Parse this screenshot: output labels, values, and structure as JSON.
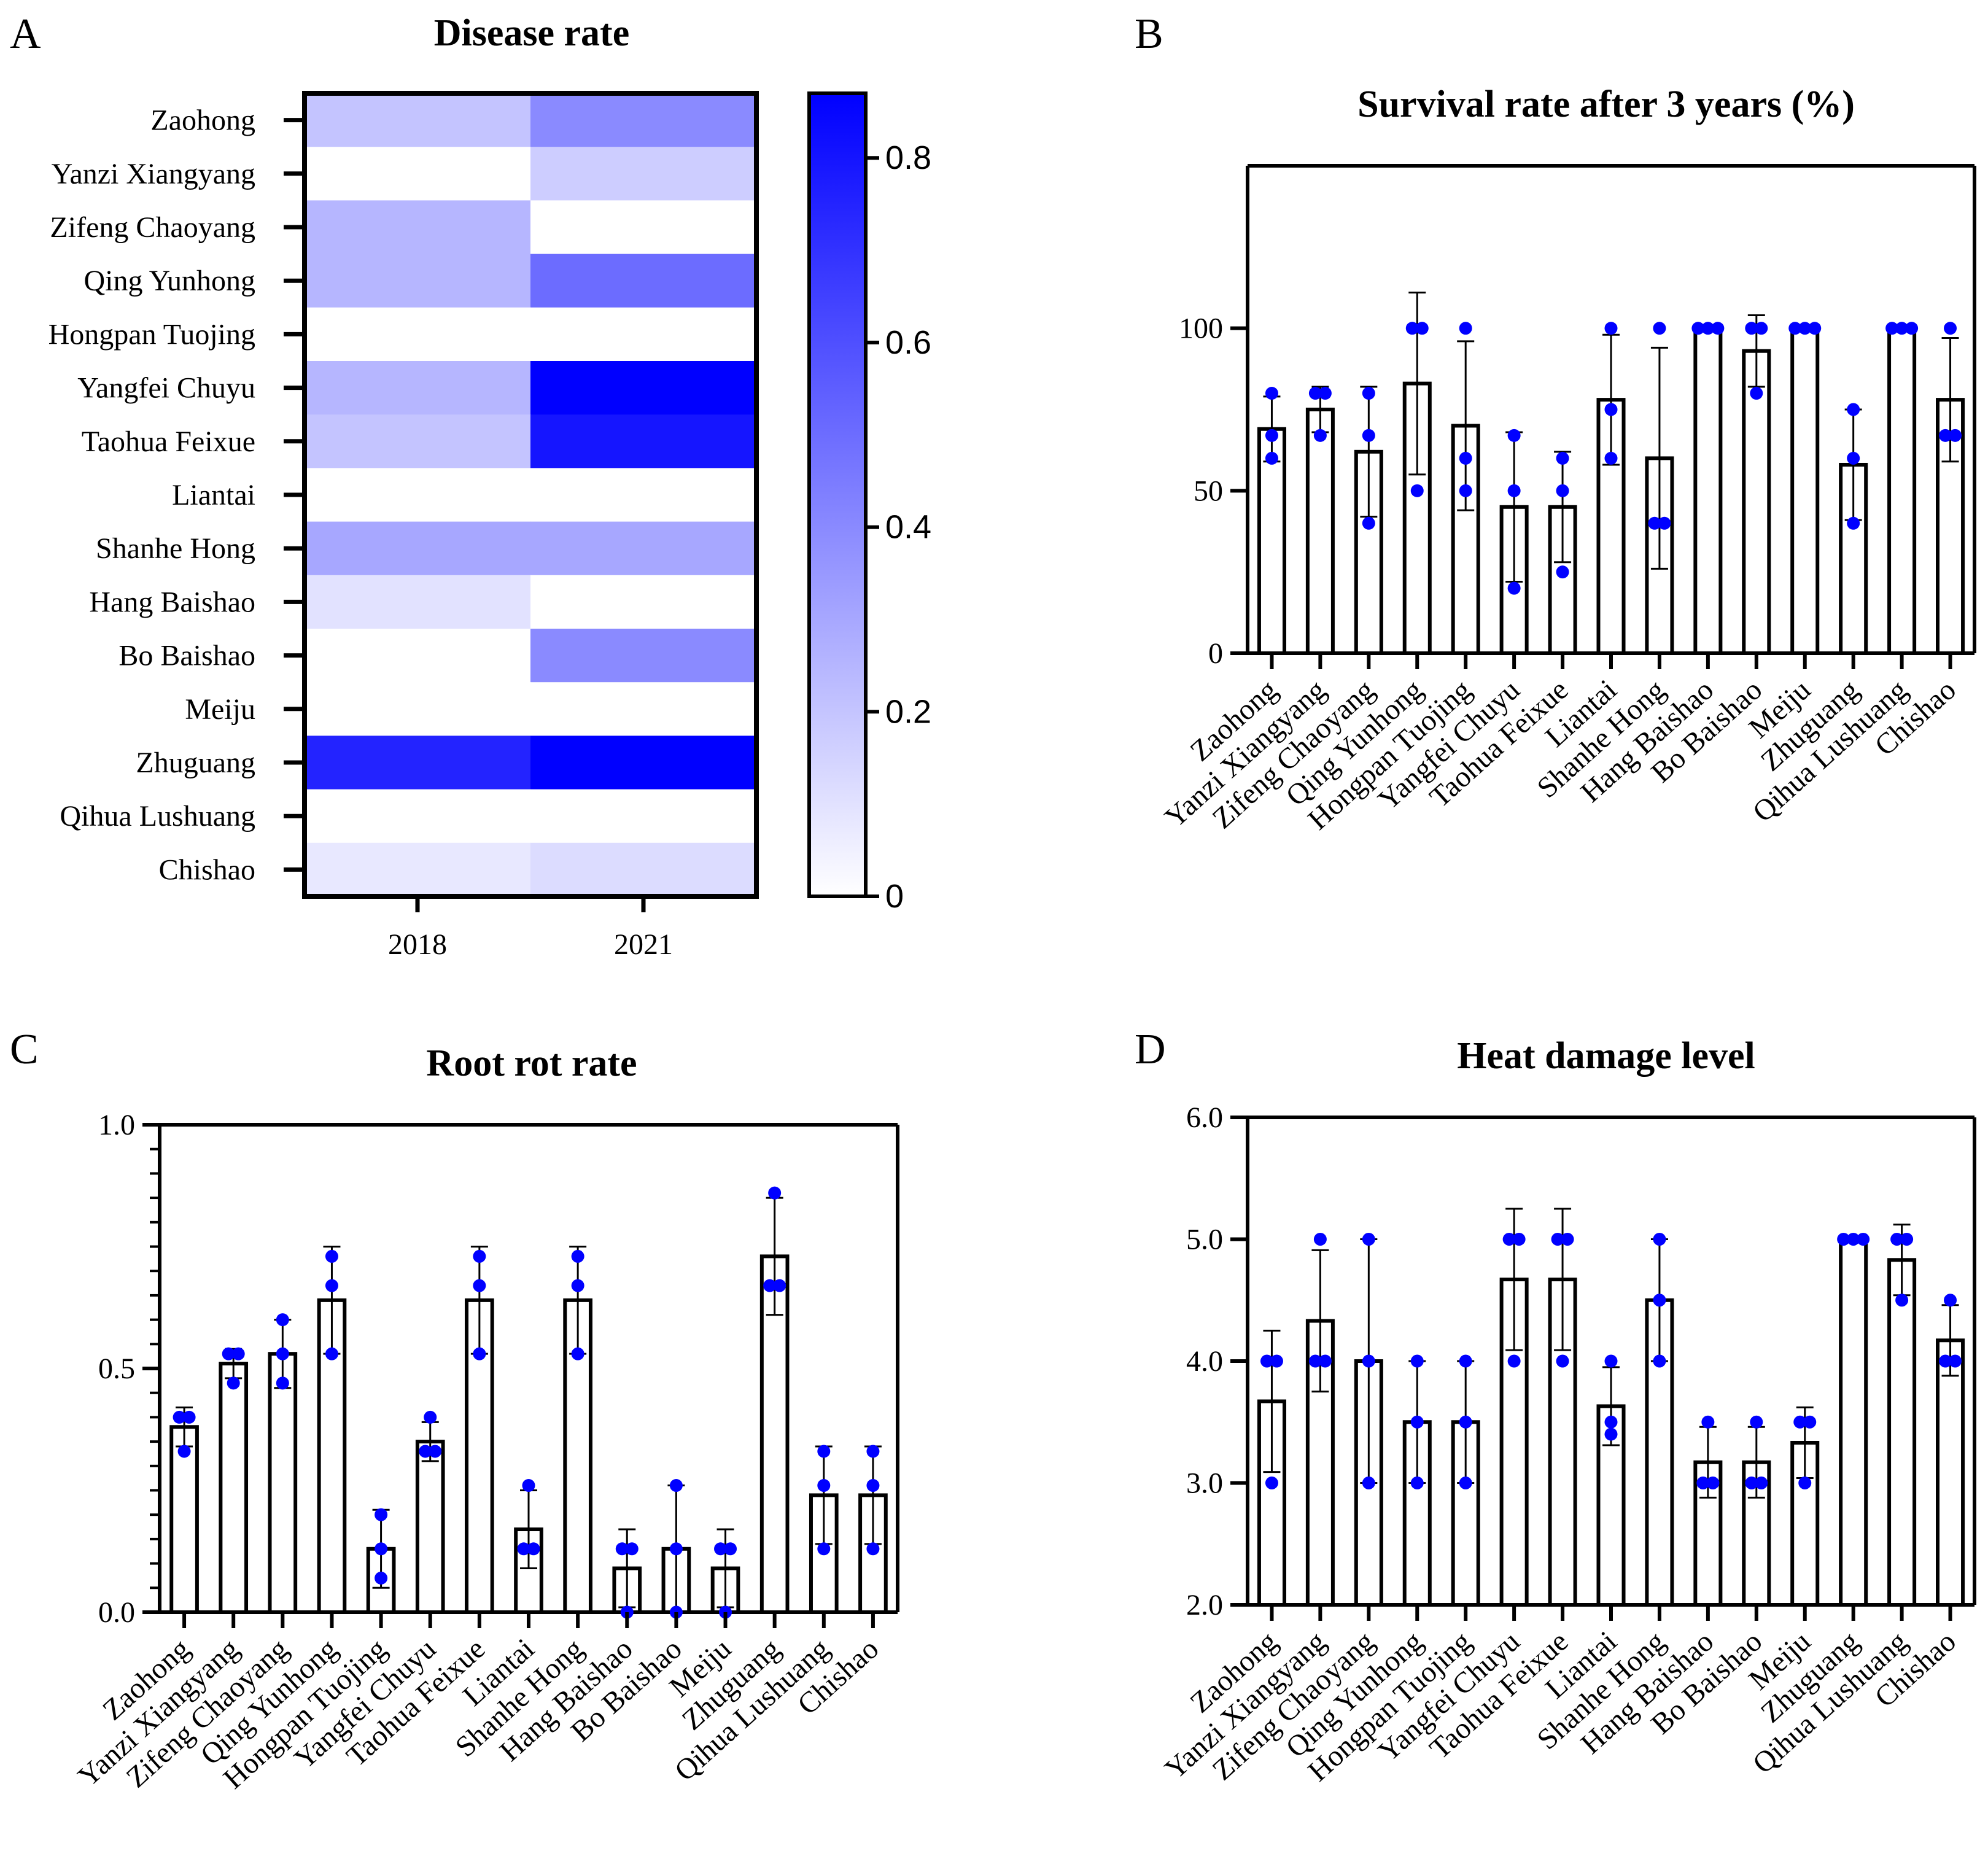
{
  "colors": {
    "bar_fill": "#ffffff",
    "bar_stroke": "#000000",
    "point": "#0000ff",
    "heat_max": "#0000ff",
    "heat_min": "#ffffff"
  },
  "chart_data": [
    {
      "panel": "A",
      "type": "heatmap",
      "title": "Disease rate",
      "rows": [
        "Zaohong",
        "Yanzi Xiangyang",
        "Zifeng Chaoyang",
        "Qing Yunhong",
        "Hongpan Tuojing",
        "Yangfei Chuyu",
        "Taohua Feixue",
        "Liantai",
        "Shanhe Hong",
        "Hang Baishao",
        "Bo Baishao",
        "Meiju",
        "Zhuguang",
        "Qihua Lushuang",
        "Chishao"
      ],
      "columns": [
        "2018",
        "2021"
      ],
      "values": [
        [
          0.2,
          0.4
        ],
        [
          0.0,
          0.17
        ],
        [
          0.25,
          0.0
        ],
        [
          0.25,
          0.5
        ],
        [
          0.0,
          0.0
        ],
        [
          0.25,
          0.87
        ],
        [
          0.2,
          0.8
        ],
        [
          0.0,
          0.0
        ],
        [
          0.3,
          0.3
        ],
        [
          0.1,
          0.0
        ],
        [
          0.0,
          0.4
        ],
        [
          0.0,
          0.0
        ],
        [
          0.75,
          0.87
        ],
        [
          0.0,
          0.0
        ],
        [
          0.08,
          0.12
        ]
      ],
      "colorbar": {
        "range": [
          0,
          0.87
        ],
        "ticks": [
          0,
          0.2,
          0.4,
          0.6,
          0.8
        ],
        "tick_labels": [
          "0",
          "0.2",
          "0.4",
          "0.6",
          "0.8"
        ]
      }
    },
    {
      "panel": "B",
      "type": "bar",
      "title": "Survival rate after 3 years (%)",
      "categories": [
        "Zaohong",
        "Yanzi Xiangyang",
        "Zifeng Chaoyang",
        "Qing Yunhong",
        "Hongpan Tuojing",
        "Yangfei Chuyu",
        "Taohua Feixue",
        "Liantai",
        "Shanhe Hong",
        "Hang Baishao",
        "Bo Baishao",
        "Meiju",
        "Zhuguang",
        "Qihua Lushuang",
        "Chishao"
      ],
      "values": [
        69,
        75,
        62,
        83,
        70,
        45,
        45,
        78,
        60,
        100,
        93,
        100,
        58,
        100,
        78
      ],
      "errors": [
        10,
        7,
        20,
        28,
        26,
        23,
        17,
        20,
        34,
        0,
        11,
        0,
        17,
        0,
        19
      ],
      "points": [
        [
          80,
          67,
          60
        ],
        [
          80,
          80,
          67
        ],
        [
          80,
          67,
          40
        ],
        [
          100,
          100,
          50
        ],
        [
          100,
          60,
          50
        ],
        [
          67,
          50,
          20
        ],
        [
          60,
          50,
          25
        ],
        [
          100,
          75,
          60
        ],
        [
          100,
          40,
          40
        ],
        [
          100,
          100,
          100
        ],
        [
          100,
          100,
          80
        ],
        [
          100,
          100,
          100
        ],
        [
          75,
          60,
          40
        ],
        [
          100,
          100,
          100
        ],
        [
          100,
          67,
          67
        ]
      ],
      "ylim": [
        0,
        150
      ],
      "yticks": [
        0,
        50,
        100
      ],
      "ytick_labels": [
        "0",
        "50",
        "100"
      ],
      "minor_ticks": false
    },
    {
      "panel": "C",
      "type": "bar",
      "title": "Root rot rate",
      "categories": [
        "Zaohong",
        "Yanzi Xiangyang",
        "Zifeng Chaoyang",
        "Qing Yunhong",
        "Hongpan Tuojing",
        "Yangfei Chuyu",
        "Taohua Feixue",
        "Liantai",
        "Shanhe Hong",
        "Hang Baishao",
        "Bo Baishao",
        "Meiju",
        "Zhuguang",
        "Qihua Lushuang",
        "Chishao"
      ],
      "values": [
        0.38,
        0.51,
        0.53,
        0.64,
        0.13,
        0.35,
        0.64,
        0.17,
        0.64,
        0.09,
        0.13,
        0.09,
        0.73,
        0.24,
        0.24
      ],
      "errors": [
        0.04,
        0.03,
        0.07,
        0.11,
        0.08,
        0.04,
        0.11,
        0.08,
        0.11,
        0.08,
        0.13,
        0.08,
        0.12,
        0.1,
        0.1
      ],
      "points": [
        [
          0.4,
          0.4,
          0.33
        ],
        [
          0.53,
          0.53,
          0.47
        ],
        [
          0.6,
          0.53,
          0.47
        ],
        [
          0.73,
          0.67,
          0.53
        ],
        [
          0.2,
          0.13,
          0.07
        ],
        [
          0.4,
          0.33,
          0.33
        ],
        [
          0.73,
          0.67,
          0.53
        ],
        [
          0.26,
          0.13,
          0.13
        ],
        [
          0.73,
          0.67,
          0.53
        ],
        [
          0.13,
          0.13,
          0.0
        ],
        [
          0.26,
          0.13,
          0.0
        ],
        [
          0.13,
          0.13,
          0.0
        ],
        [
          0.86,
          0.67,
          0.67
        ],
        [
          0.33,
          0.26,
          0.13
        ],
        [
          0.33,
          0.26,
          0.13
        ]
      ],
      "ylim": [
        0,
        1.0
      ],
      "yticks": [
        0.0,
        0.5,
        1.0
      ],
      "ytick_labels": [
        "0.0",
        "0.5",
        "1.0"
      ],
      "minor_ticks": true
    },
    {
      "panel": "D",
      "type": "bar",
      "title": "Heat damage level",
      "categories": [
        "Zaohong",
        "Yanzi Xiangyang",
        "Zifeng Chaoyang",
        "Qing Yunhong",
        "Hongpan Tuojing",
        "Yangfei Chuyu",
        "Taohua Feixue",
        "Liantai",
        "Shanhe Hong",
        "Hang Baishao",
        "Bo Baishao",
        "Meiju",
        "Zhuguang",
        "Qihua Lushuang",
        "Chishao"
      ],
      "values": [
        3.67,
        4.33,
        4.0,
        3.5,
        3.5,
        4.67,
        4.67,
        3.63,
        4.5,
        3.17,
        3.17,
        3.33,
        5.0,
        4.83,
        4.17
      ],
      "errors": [
        0.58,
        0.58,
        1.0,
        0.5,
        0.5,
        0.58,
        0.58,
        0.32,
        0.5,
        0.29,
        0.29,
        0.29,
        0.0,
        0.29,
        0.29
      ],
      "points": [
        [
          4.0,
          4.0,
          3.0
        ],
        [
          5.0,
          4.0,
          4.0
        ],
        [
          5.0,
          4.0,
          3.0
        ],
        [
          4.0,
          3.5,
          3.0
        ],
        [
          4.0,
          3.5,
          3.0
        ],
        [
          5.0,
          5.0,
          4.0
        ],
        [
          5.0,
          5.0,
          4.0
        ],
        [
          4.0,
          3.5,
          3.4
        ],
        [
          5.0,
          4.5,
          4.0
        ],
        [
          3.5,
          3.0,
          3.0
        ],
        [
          3.5,
          3.0,
          3.0
        ],
        [
          3.5,
          3.5,
          3.0
        ],
        [
          5.0,
          5.0,
          5.0
        ],
        [
          5.0,
          5.0,
          4.5
        ],
        [
          4.5,
          4.0,
          4.0
        ]
      ],
      "ylim": [
        2.0,
        6.0
      ],
      "yticks": [
        2.0,
        3.0,
        4.0,
        5.0,
        6.0
      ],
      "ytick_labels": [
        "2.0",
        "3.0",
        "4.0",
        "5.0",
        "6.0"
      ],
      "minor_ticks": false
    }
  ]
}
